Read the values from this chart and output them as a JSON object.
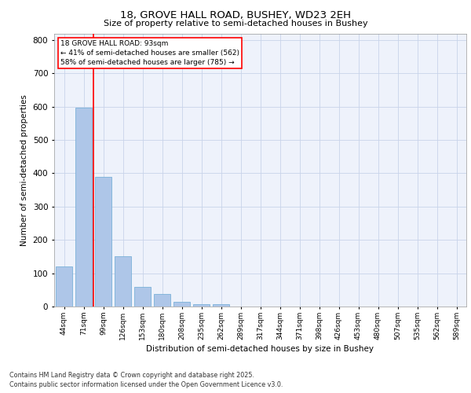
{
  "title_line1": "18, GROVE HALL ROAD, BUSHEY, WD23 2EH",
  "title_line2": "Size of property relative to semi-detached houses in Bushey",
  "xlabel": "Distribution of semi-detached houses by size in Bushey",
  "ylabel": "Number of semi-detached properties",
  "categories": [
    "44sqm",
    "71sqm",
    "99sqm",
    "126sqm",
    "153sqm",
    "180sqm",
    "208sqm",
    "235sqm",
    "262sqm",
    "289sqm",
    "317sqm",
    "344sqm",
    "371sqm",
    "398sqm",
    "426sqm",
    "453sqm",
    "480sqm",
    "507sqm",
    "535sqm",
    "562sqm",
    "589sqm"
  ],
  "values": [
    120,
    597,
    390,
    152,
    60,
    38,
    14,
    6,
    6,
    0,
    0,
    0,
    0,
    0,
    0,
    0,
    0,
    0,
    0,
    0,
    0
  ],
  "bar_color": "#aec6e8",
  "bar_edgecolor": "#6aaad4",
  "vline_color": "red",
  "vline_label": "18 GROVE HALL ROAD: 93sqm",
  "pct_smaller": 41,
  "count_smaller": 562,
  "pct_larger": 58,
  "count_larger": 785,
  "ylim": [
    0,
    820
  ],
  "yticks": [
    0,
    100,
    200,
    300,
    400,
    500,
    600,
    700,
    800
  ],
  "footer_line1": "Contains HM Land Registry data © Crown copyright and database right 2025.",
  "footer_line2": "Contains public sector information licensed under the Open Government Licence v3.0.",
  "bg_color": "#eef2fb",
  "grid_color": "#c8d4ea"
}
